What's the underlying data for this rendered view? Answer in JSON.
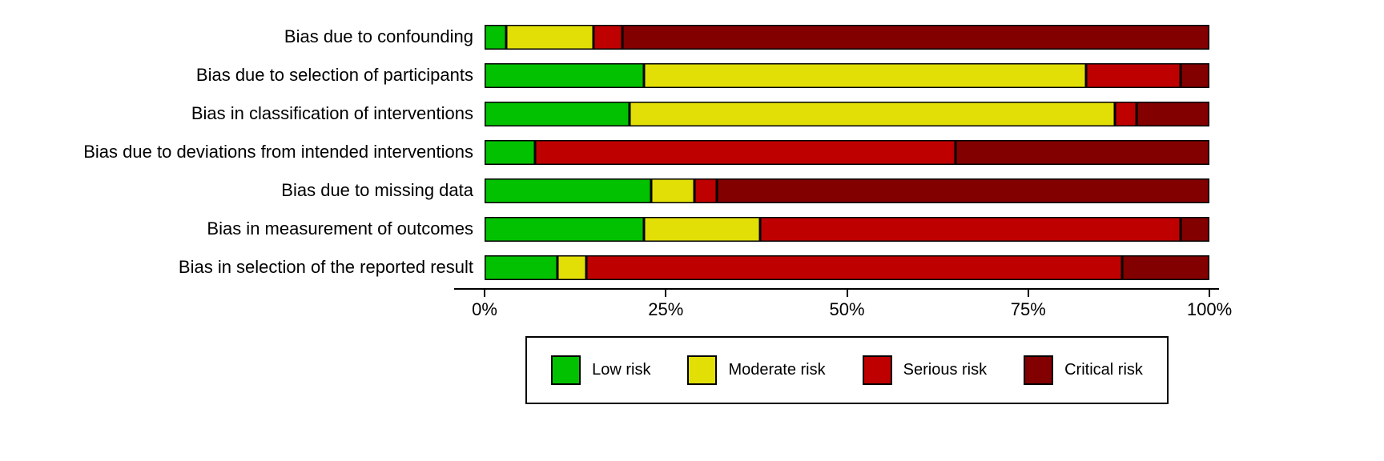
{
  "chart_data": {
    "type": "bar",
    "orientation": "horizontal",
    "stacked": true,
    "title": "",
    "xlabel": "",
    "ylabel": "",
    "xlim": [
      0,
      100
    ],
    "x_ticks": [
      "0%",
      "25%",
      "50%",
      "75%",
      "100%"
    ],
    "x_tick_values": [
      0,
      25,
      50,
      75,
      100
    ],
    "grid": false,
    "legend_position": "bottom",
    "bar_border_color": "#000000",
    "categories": [
      "Bias due to confounding",
      "Bias due to selection of participants",
      "Bias in classification of interventions",
      "Bias due to deviations from intended interventions",
      "Bias due to missing data",
      "Bias in measurement of outcomes",
      "Bias in selection of the reported result"
    ],
    "series": [
      {
        "name": "Low risk",
        "color": "#02C100",
        "values": [
          3,
          22,
          20,
          7,
          23,
          22,
          10
        ]
      },
      {
        "name": "Moderate risk",
        "color": "#E2DF07",
        "values": [
          12,
          61,
          67,
          0,
          6,
          16,
          4
        ]
      },
      {
        "name": "Serious risk",
        "color": "#BF0000",
        "values": [
          4,
          13,
          3,
          58,
          3,
          58,
          74
        ]
      },
      {
        "name": "Critical risk",
        "color": "#820000",
        "values": [
          81,
          4,
          10,
          35,
          68,
          4,
          12
        ]
      }
    ]
  }
}
